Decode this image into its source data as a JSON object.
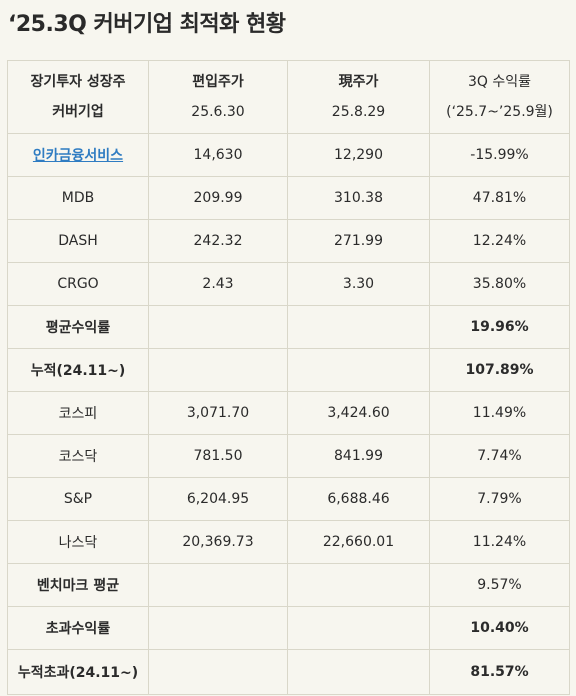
{
  "title": "‘25.3Q 커버기업 최적화 현황",
  "header": {
    "col1": [
      "장기투자 성장주",
      "커버기업"
    ],
    "col2": [
      "편입주가",
      "25.6.30"
    ],
    "col3": [
      "現주가",
      "25.8.29"
    ],
    "col4": [
      "3Q 수익률",
      "(‘25.7~’25.9월)"
    ]
  },
  "rows": [
    {
      "name": "인카금융서비스",
      "buy": "14,630",
      "now": "12,290",
      "ret": "-15.99%",
      "style": "link"
    },
    {
      "name": "MDB",
      "buy": "209.99",
      "now": "310.38",
      "ret": "47.81%",
      "style": "normal"
    },
    {
      "name": "DASH",
      "buy": "242.32",
      "now": "271.99",
      "ret": "12.24%",
      "style": "normal"
    },
    {
      "name": "CRGO",
      "buy": "2.43",
      "now": "3.30",
      "ret": "35.80%",
      "style": "normal"
    },
    {
      "name": "평균수익률",
      "buy": "",
      "now": "",
      "ret": "19.96%",
      "style": "bold"
    },
    {
      "name": "누적(24.11~)",
      "buy": "",
      "now": "",
      "ret": "107.89%",
      "style": "bold"
    },
    {
      "name": "코스피",
      "buy": "3,071.70",
      "now": "3,424.60",
      "ret": "11.49%",
      "style": "normal"
    },
    {
      "name": "코스닥",
      "buy": "781.50",
      "now": "841.99",
      "ret": "7.74%",
      "style": "normal"
    },
    {
      "name": "S&P",
      "buy": "6,204.95",
      "now": "6,688.46",
      "ret": "7.79%",
      "style": "normal"
    },
    {
      "name": "나스닥",
      "buy": "20,369.73",
      "now": "22,660.01",
      "ret": "11.24%",
      "style": "normal"
    },
    {
      "name": "벤치마크 평균",
      "buy": "",
      "now": "",
      "ret": "9.57%",
      "style": "bold-name"
    },
    {
      "name": "초과수익률",
      "buy": "",
      "now": "",
      "ret": "10.40%",
      "style": "bold"
    },
    {
      "name": "누적초과(24.11~)",
      "buy": "",
      "now": "",
      "ret": "81.57%",
      "style": "bold"
    }
  ],
  "colors": {
    "background": "#f7f6ef",
    "border": "#d9d7c9",
    "link": "#2f7cc2"
  }
}
